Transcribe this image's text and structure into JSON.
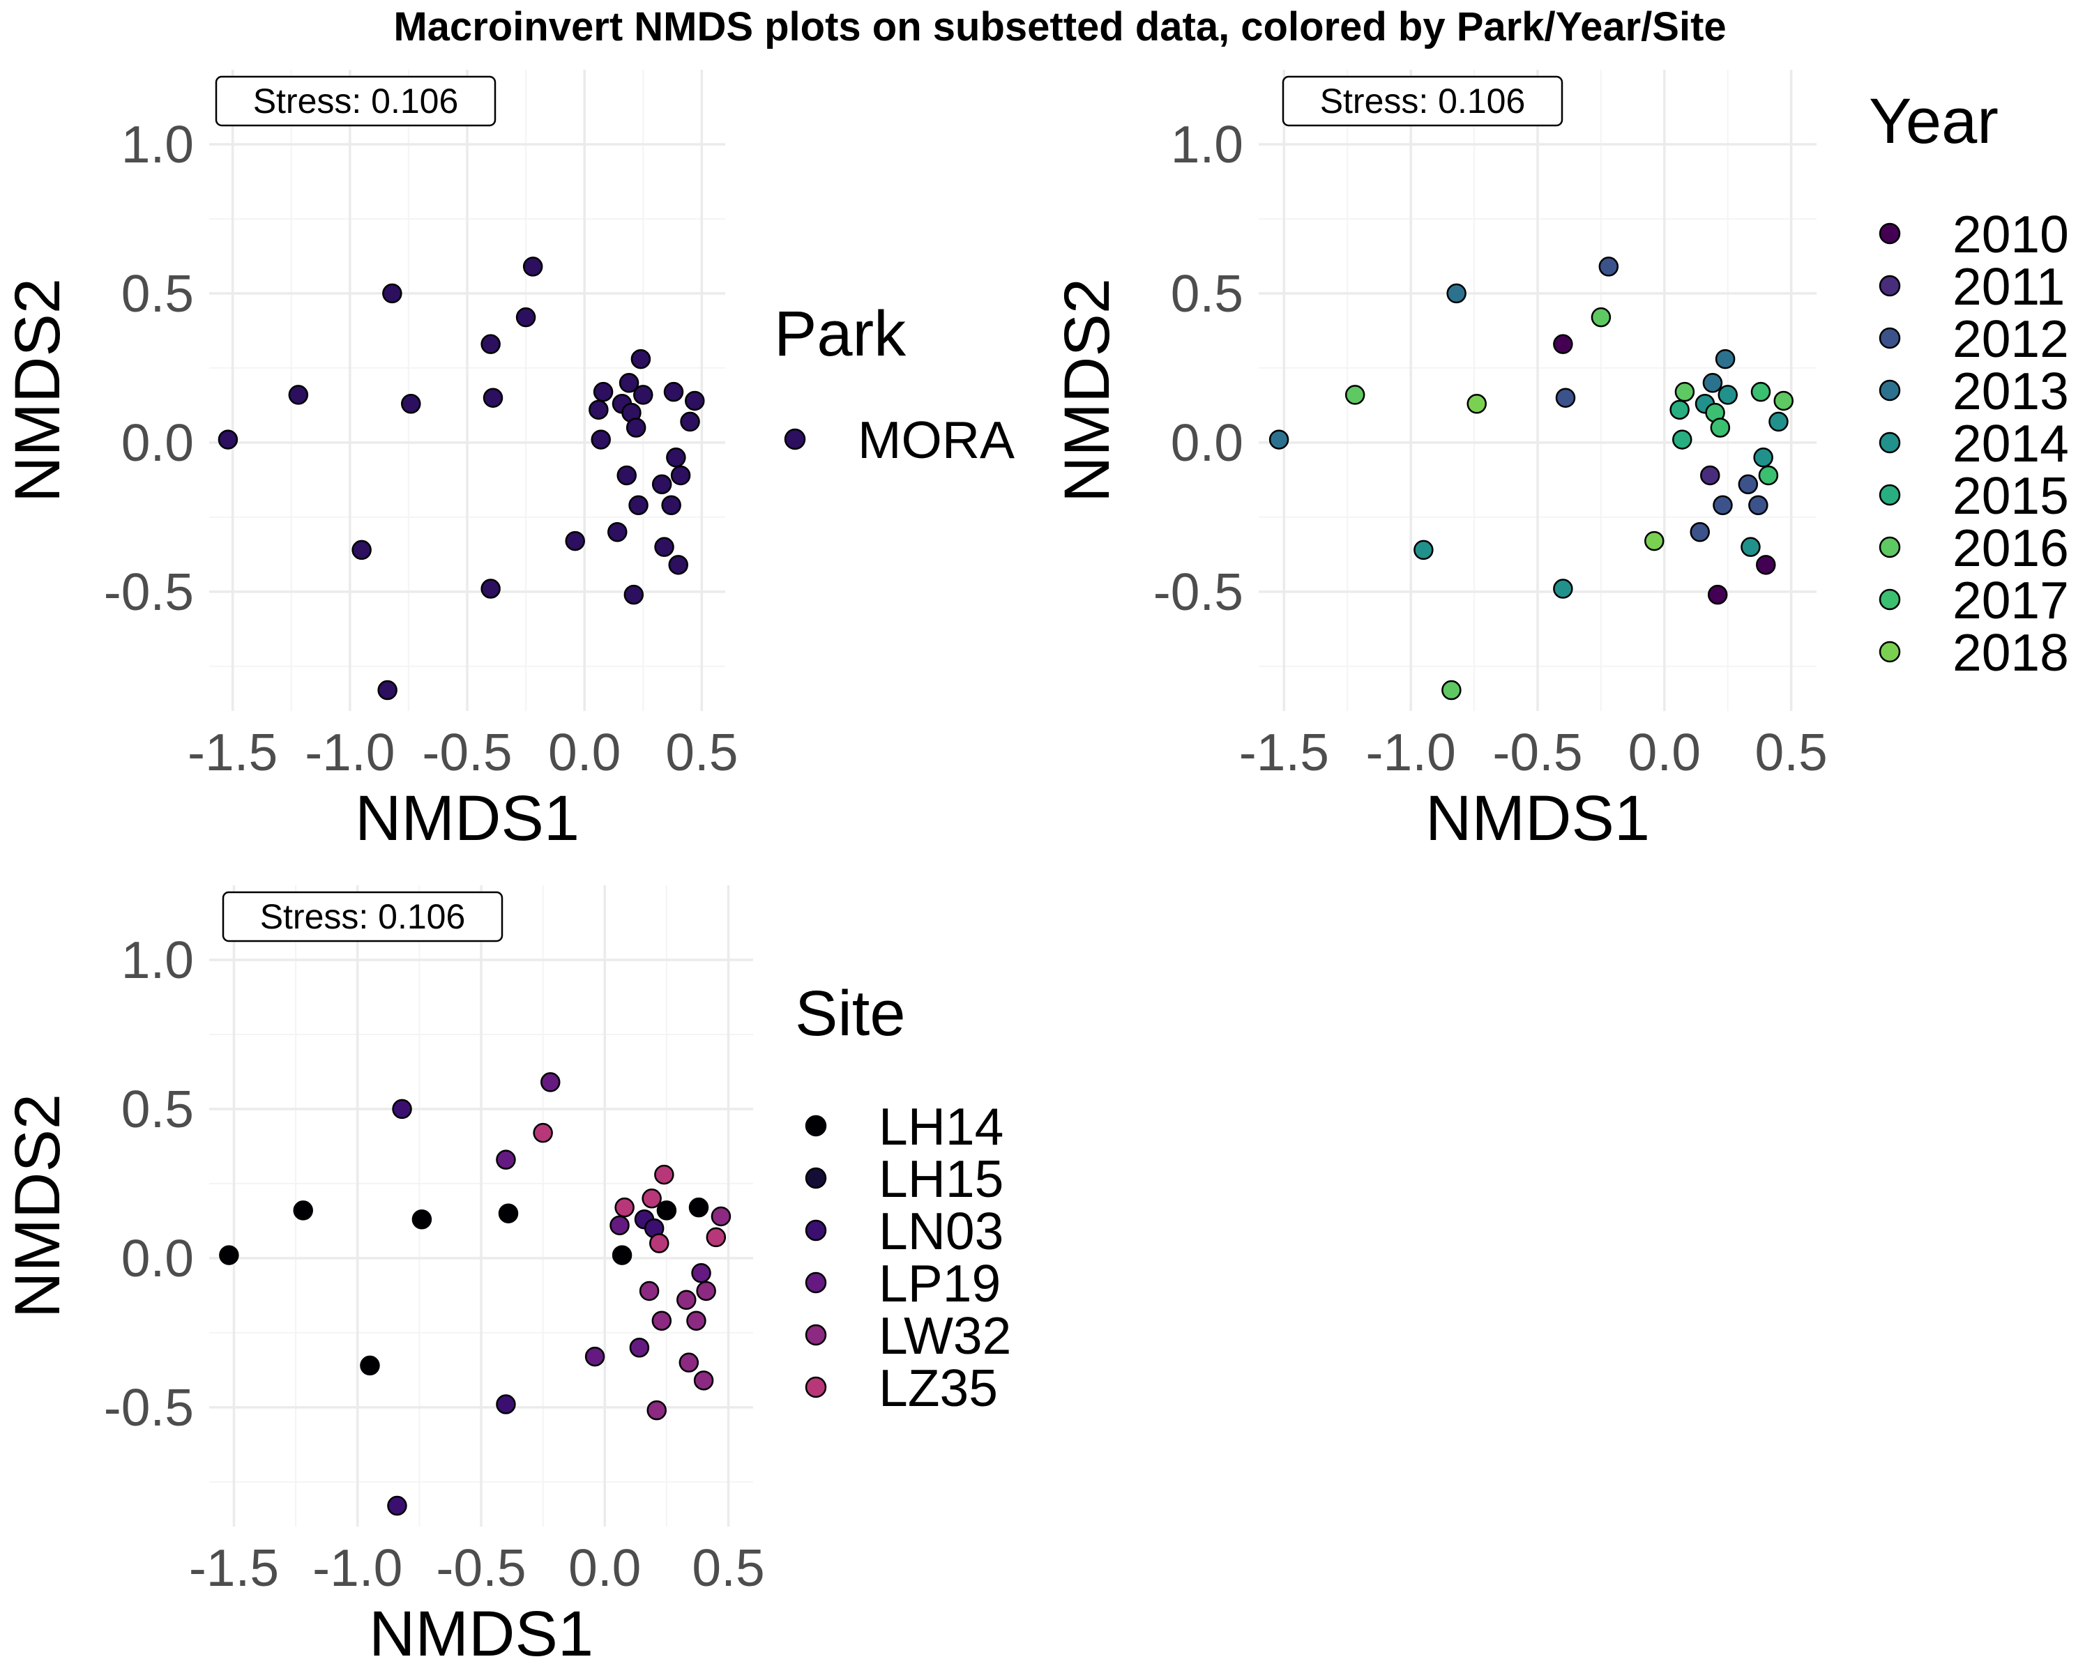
{
  "figure": {
    "title": "Macroinvert NMDS plots on subsetted data, colored by Park/Year/Site"
  },
  "chart_data": [
    {
      "type": "scatter",
      "id": "park",
      "xlabel": "NMDS1",
      "ylabel": "NMDS2",
      "xlim": [
        -1.6,
        0.6
      ],
      "ylim": [
        -0.9,
        1.25
      ],
      "xticks": [
        -1.5,
        -1.0,
        -0.5,
        0.0,
        0.5
      ],
      "xtick_labels": [
        "-1.5",
        "-1.0",
        "-0.5",
        "0.0",
        "0.5"
      ],
      "yticks": [
        -0.5,
        0.0,
        0.5,
        1.0
      ],
      "ytick_labels": [
        "-0.5",
        "0.0",
        "0.5",
        "1.0"
      ],
      "grid": true,
      "annotation": "Stress:  0.106",
      "legend": {
        "title": "Park",
        "position": "right",
        "entries": [
          {
            "label": "MORA",
            "color": "#2c0f5f"
          }
        ]
      }
    },
    {
      "type": "scatter",
      "id": "year",
      "xlabel": "NMDS1",
      "ylabel": "NMDS2",
      "xlim": [
        -1.6,
        0.6
      ],
      "ylim": [
        -0.9,
        1.25
      ],
      "xticks": [
        -1.5,
        -1.0,
        -0.5,
        0.0,
        0.5
      ],
      "xtick_labels": [
        "-1.5",
        "-1.0",
        "-0.5",
        "0.0",
        "0.5"
      ],
      "yticks": [
        -0.5,
        0.0,
        0.5,
        1.0
      ],
      "ytick_labels": [
        "-0.5",
        "0.0",
        "0.5",
        "1.0"
      ],
      "grid": true,
      "annotation": "Stress:  0.106",
      "legend": {
        "title": "Year",
        "position": "right",
        "entries": [
          {
            "label": "2010",
            "color": "#440154"
          },
          {
            "label": "2011",
            "color": "#472d7b"
          },
          {
            "label": "2012",
            "color": "#3b528b"
          },
          {
            "label": "2013",
            "color": "#2c728e"
          },
          {
            "label": "2014",
            "color": "#21918c"
          },
          {
            "label": "2015",
            "color": "#28ae80"
          },
          {
            "label": "2016",
            "color": "#5ec962"
          },
          {
            "label": "2017",
            "color": "#3bbf70"
          },
          {
            "label": "2018",
            "color": "#7ad151"
          }
        ]
      }
    },
    {
      "type": "scatter",
      "id": "site",
      "xlabel": "NMDS1",
      "ylabel": "NMDS2",
      "xlim": [
        -1.6,
        0.6
      ],
      "ylim": [
        -0.9,
        1.25
      ],
      "xticks": [
        -1.5,
        -1.0,
        -0.5,
        0.0,
        0.5
      ],
      "xtick_labels": [
        "-1.5",
        "-1.0",
        "-0.5",
        "0.0",
        "0.5"
      ],
      "yticks": [
        -0.5,
        0.0,
        0.5,
        1.0
      ],
      "ytick_labels": [
        "-0.5",
        "0.0",
        "0.5",
        "1.0"
      ],
      "grid": true,
      "annotation": "Stress:  0.106",
      "legend": {
        "title": "Site",
        "position": "right",
        "entries": [
          {
            "label": "LH14",
            "color": "#000004"
          },
          {
            "label": "LH15",
            "color": "#140e36"
          },
          {
            "label": "LN03",
            "color": "#3b0f70"
          },
          {
            "label": "LP19",
            "color": "#641a80"
          },
          {
            "label": "LW32",
            "color": "#8c2981"
          },
          {
            "label": "LZ35",
            "color": "#b73779"
          }
        ]
      }
    }
  ],
  "points": [
    {
      "x": -1.52,
      "y": 0.01,
      "year": "2013",
      "site": "LH14"
    },
    {
      "x": -1.22,
      "y": 0.16,
      "year": "2016",
      "site": "LH14"
    },
    {
      "x": -0.95,
      "y": -0.36,
      "year": "2014",
      "site": "LH14"
    },
    {
      "x": -0.82,
      "y": 0.5,
      "year": "2013",
      "site": "LN03"
    },
    {
      "x": -0.84,
      "y": -0.83,
      "year": "2016",
      "site": "LN03"
    },
    {
      "x": -0.74,
      "y": 0.13,
      "year": "2018",
      "site": "LH14"
    },
    {
      "x": -0.4,
      "y": 0.33,
      "year": "2010",
      "site": "LP19"
    },
    {
      "x": -0.39,
      "y": 0.15,
      "year": "2012",
      "site": "LH14"
    },
    {
      "x": -0.4,
      "y": -0.49,
      "year": "2014",
      "site": "LN03"
    },
    {
      "x": -0.25,
      "y": 0.42,
      "year": "2016",
      "site": "LZ35"
    },
    {
      "x": -0.22,
      "y": 0.59,
      "year": "2012",
      "site": "LP19"
    },
    {
      "x": -0.04,
      "y": -0.33,
      "year": "2018",
      "site": "LP19"
    },
    {
      "x": 0.08,
      "y": 0.17,
      "year": "2016",
      "site": "LZ35"
    },
    {
      "x": 0.06,
      "y": 0.11,
      "year": "2015",
      "site": "LP19"
    },
    {
      "x": 0.07,
      "y": 0.01,
      "year": "2015",
      "site": "LH14"
    },
    {
      "x": 0.14,
      "y": -0.3,
      "year": "2012",
      "site": "LP19"
    },
    {
      "x": 0.16,
      "y": 0.13,
      "year": "2014",
      "site": "LN03"
    },
    {
      "x": 0.18,
      "y": -0.11,
      "year": "2011",
      "site": "LW32"
    },
    {
      "x": 0.19,
      "y": 0.2,
      "year": "2013",
      "site": "LZ35"
    },
    {
      "x": 0.2,
      "y": 0.1,
      "year": "2017",
      "site": "LN03"
    },
    {
      "x": 0.21,
      "y": -0.51,
      "year": "2010",
      "site": "LW32"
    },
    {
      "x": 0.22,
      "y": 0.05,
      "year": "2017",
      "site": "LZ35"
    },
    {
      "x": 0.23,
      "y": -0.21,
      "year": "2012",
      "site": "LW32"
    },
    {
      "x": 0.24,
      "y": 0.28,
      "year": "2013",
      "site": "LZ35"
    },
    {
      "x": 0.25,
      "y": 0.16,
      "year": "2014",
      "site": "LH14"
    },
    {
      "x": 0.33,
      "y": -0.14,
      "year": "2012",
      "site": "LW32"
    },
    {
      "x": 0.34,
      "y": -0.35,
      "year": "2014",
      "site": "LW32"
    },
    {
      "x": 0.37,
      "y": -0.21,
      "year": "2012",
      "site": "LW32"
    },
    {
      "x": 0.38,
      "y": 0.17,
      "year": "2017",
      "site": "LH14"
    },
    {
      "x": 0.39,
      "y": -0.05,
      "year": "2014",
      "site": "LP19"
    },
    {
      "x": 0.4,
      "y": -0.41,
      "year": "2010",
      "site": "LW32"
    },
    {
      "x": 0.41,
      "y": -0.11,
      "year": "2017",
      "site": "LW32"
    },
    {
      "x": 0.45,
      "y": 0.07,
      "year": "2014",
      "site": "LZ35"
    },
    {
      "x": 0.47,
      "y": 0.14,
      "year": "2016",
      "site": "LW32"
    }
  ]
}
